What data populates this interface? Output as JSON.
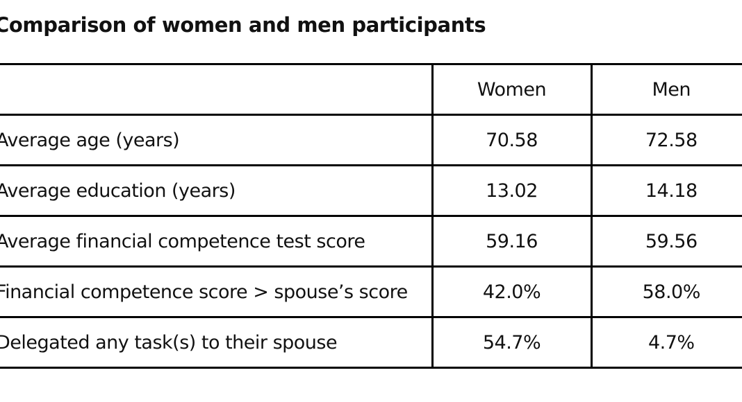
{
  "chart_data": {
    "type": "table",
    "title": "Comparison of women and men participants",
    "columns": [
      "",
      "Women",
      "Men"
    ],
    "rows": [
      {
        "label": "Average age (years)",
        "women": "70.58",
        "men": "72.58"
      },
      {
        "label": "Average education (years)",
        "women": "13.02",
        "men": "14.18"
      },
      {
        "label": "Average financial competence test score",
        "women": "59.16",
        "men": "59.56"
      },
      {
        "label": "Financial competence score > spouse’s score",
        "women": "42.0%",
        "men": "58.0%"
      },
      {
        "label": "Delegated any task(s) to their spouse",
        "women": "54.7%",
        "men": "4.7%"
      }
    ]
  }
}
